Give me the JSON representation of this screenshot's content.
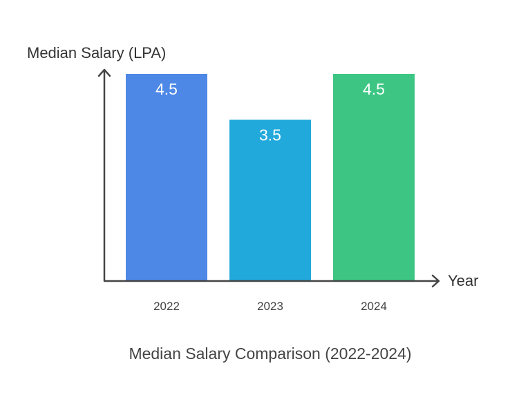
{
  "chart_data": {
    "type": "bar",
    "title": "Median Salary Comparison (2022-2024)",
    "ylabel": "Median Salary (LPA)",
    "xlabel": "Year",
    "categories": [
      "2022",
      "2023",
      "2024"
    ],
    "values": [
      4.5,
      3.5,
      4.5
    ],
    "value_labels": [
      "4.5",
      "3.5",
      "4.5"
    ],
    "colors": [
      "#4E88E6",
      "#21A9DC",
      "#3DC683"
    ],
    "ylim": [
      0,
      4.5
    ],
    "grid": false,
    "legend": "none"
  }
}
